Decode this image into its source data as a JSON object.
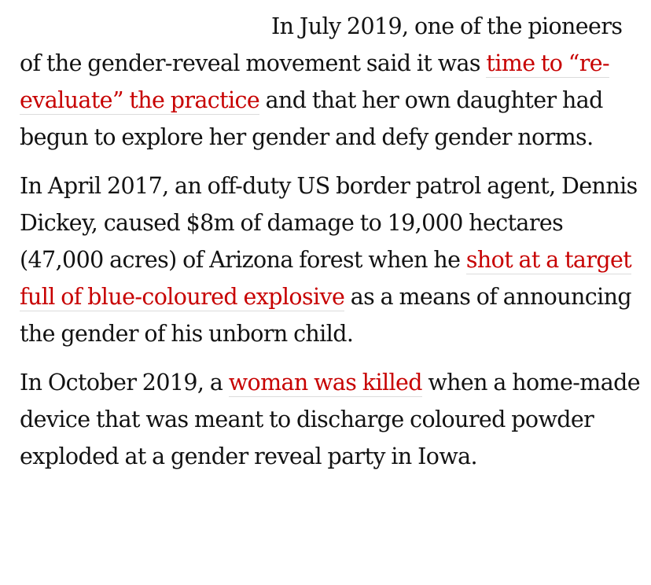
{
  "article": {
    "paragraph_1": {
      "before_link": "In July 2019, one of the pioneers of the gender-reveal movement said it was ",
      "link": "time to “re-evaluate” the practice",
      "after_link": " and that her own daughter had begun to explore her gender and defy gender norms."
    },
    "paragraph_2": {
      "before_link": "In April 2017, an off-duty US border patrol agent, Dennis Dickey, caused $8m of damage to 19,000 hectares (47,000 acres) of Arizona forest when he ",
      "link": "shot at a target full of blue-coloured explosive",
      "after_link": " as a means of announcing the gender of his unborn child."
    },
    "paragraph_3": {
      "before_link": "In October 2019, a ",
      "link": "woman was killed",
      "after_link": " when a home-made device that was meant to discharge coloured powder exploded at a gender reveal party in Iowa."
    }
  },
  "colors": {
    "text": "#121212",
    "link": "#c70000",
    "link_underline": "#dcdcdc",
    "background": "#ffffff"
  }
}
